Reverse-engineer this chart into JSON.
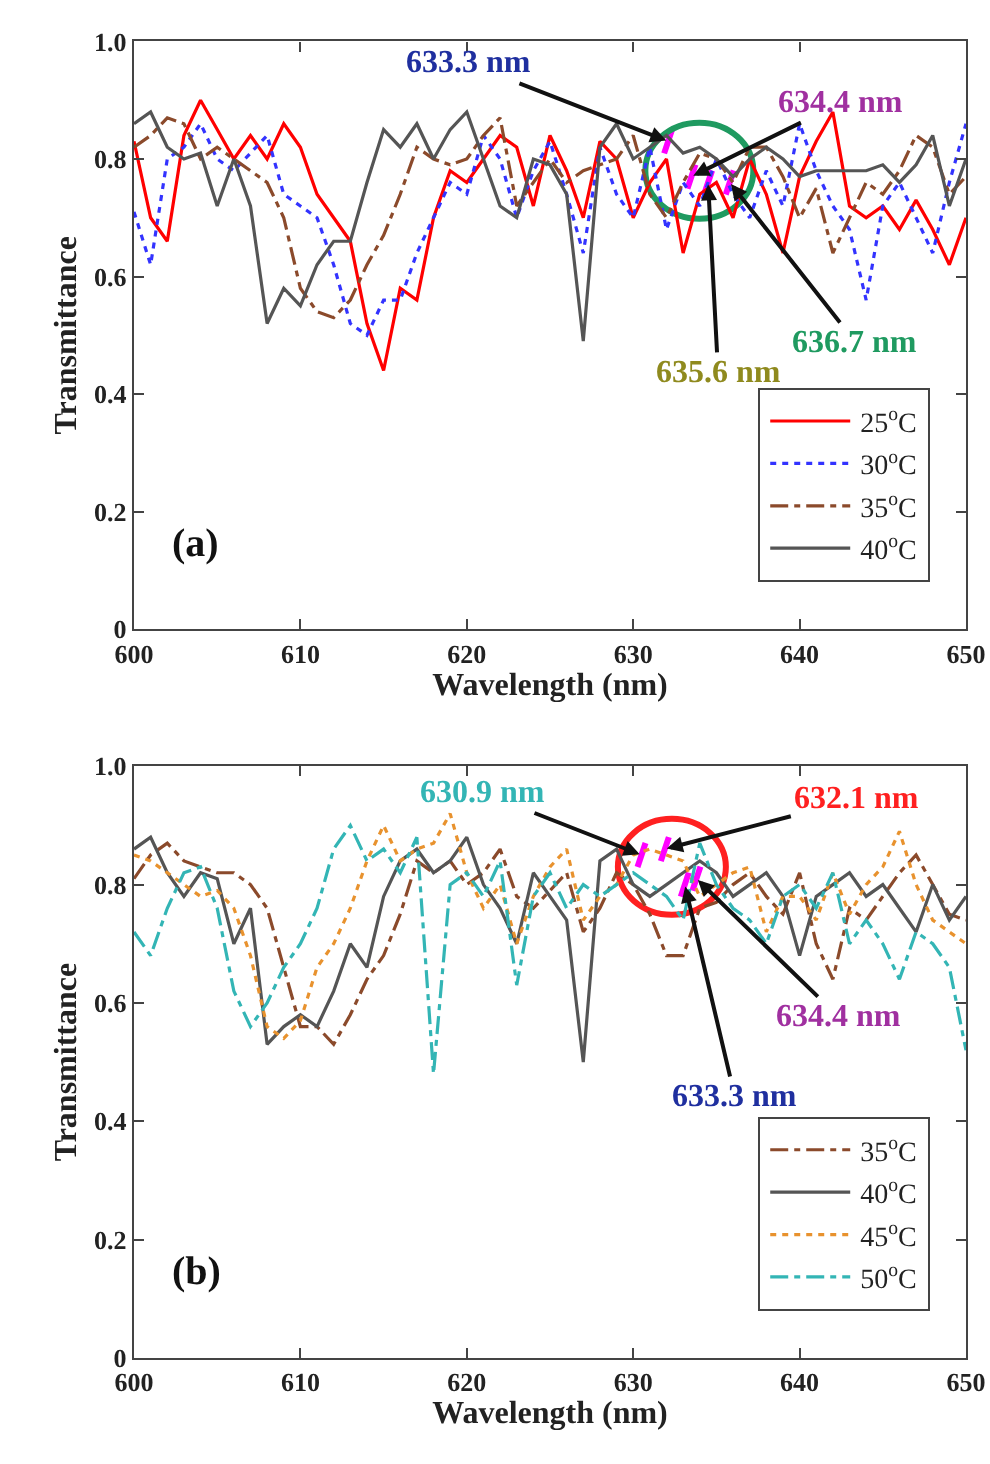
{
  "chart_data": [
    {
      "type": "line",
      "xlabel": "Wavelength (nm)",
      "ylabel": "Transmittance",
      "xlim": [
        600,
        650
      ],
      "ylim": [
        0,
        1
      ],
      "xticks": [
        600,
        610,
        620,
        630,
        640,
        650
      ],
      "yticks": [
        0,
        0.2,
        0.4,
        0.6,
        0.8,
        {
          "value": 1,
          "label": "1.0"
        }
      ],
      "legend": "bottom right",
      "x": [
        600,
        601,
        602,
        603,
        604,
        605,
        606,
        607,
        608,
        609,
        610,
        611,
        612,
        613,
        614,
        615,
        616,
        617,
        618,
        619,
        620,
        621,
        622,
        623,
        624,
        625,
        626,
        627,
        628,
        629,
        630,
        631,
        632,
        633,
        634,
        635,
        636,
        637,
        638,
        639,
        640,
        641,
        642,
        643,
        644,
        645,
        646,
        647,
        648,
        649,
        650
      ],
      "series": [
        {
          "name": "25$^{o}$C",
          "color": "#ff0000",
          "line_style": "solid",
          "values": [
            0.83,
            0.7,
            0.66,
            0.84,
            0.9,
            0.85,
            0.8,
            0.84,
            0.8,
            0.86,
            0.82,
            0.74,
            0.7,
            0.66,
            0.52,
            0.44,
            0.58,
            0.56,
            0.7,
            0.78,
            0.76,
            0.8,
            0.84,
            0.82,
            0.72,
            0.84,
            0.78,
            0.7,
            0.83,
            0.8,
            0.7,
            0.76,
            0.8,
            0.64,
            0.74,
            0.76,
            0.7,
            0.8,
            0.74,
            0.64,
            0.77,
            0.83,
            0.88,
            0.72,
            0.7,
            0.72,
            0.68,
            0.73,
            0.68,
            0.62,
            0.7
          ]
        },
        {
          "name": "30$^{o}$C",
          "color": "#3333ff",
          "line_style": "dotted",
          "values": [
            0.71,
            0.62,
            0.8,
            0.82,
            0.86,
            0.8,
            0.78,
            0.81,
            0.84,
            0.74,
            0.72,
            0.7,
            0.62,
            0.52,
            0.5,
            0.56,
            0.56,
            0.64,
            0.7,
            0.76,
            0.74,
            0.84,
            0.8,
            0.7,
            0.78,
            0.83,
            0.74,
            0.64,
            0.82,
            0.74,
            0.7,
            0.82,
            0.68,
            0.76,
            0.72,
            0.8,
            0.74,
            0.7,
            0.78,
            0.72,
            0.86,
            0.78,
            0.72,
            0.68,
            0.56,
            0.72,
            0.76,
            0.7,
            0.64,
            0.76,
            0.86
          ]
        },
        {
          "name": "35$^{o}$C",
          "color": "#8b4a2b",
          "line_style": "dashdot",
          "values": [
            0.82,
            0.84,
            0.87,
            0.86,
            0.8,
            0.82,
            0.8,
            0.78,
            0.76,
            0.7,
            0.58,
            0.54,
            0.53,
            0.56,
            0.62,
            0.67,
            0.74,
            0.82,
            0.8,
            0.79,
            0.8,
            0.84,
            0.87,
            0.72,
            0.76,
            0.8,
            0.76,
            0.78,
            0.79,
            0.8,
            0.84,
            0.74,
            0.7,
            0.76,
            0.81,
            0.8,
            0.76,
            0.82,
            0.82,
            0.77,
            0.7,
            0.75,
            0.64,
            0.7,
            0.76,
            0.74,
            0.78,
            0.84,
            0.82,
            0.74,
            0.77
          ]
        },
        {
          "name": "40$^{o}$C",
          "color": "#555555",
          "line_style": "solid",
          "values": [
            0.86,
            0.88,
            0.82,
            0.8,
            0.81,
            0.72,
            0.8,
            0.72,
            0.52,
            0.58,
            0.55,
            0.62,
            0.66,
            0.66,
            0.76,
            0.85,
            0.82,
            0.86,
            0.8,
            0.85,
            0.88,
            0.8,
            0.72,
            0.7,
            0.8,
            0.79,
            0.74,
            0.49,
            0.82,
            0.86,
            0.8,
            0.82,
            0.84,
            0.81,
            0.82,
            0.8,
            0.77,
            0.8,
            0.82,
            0.8,
            0.77,
            0.78,
            0.78,
            0.78,
            0.78,
            0.79,
            0.76,
            0.79,
            0.84,
            0.72,
            0.8
          ]
        }
      ],
      "annotations": [
        {
          "text": "633.3 nm",
          "x": 632.1,
          "y": 0.83
        },
        {
          "text": "634.4 nm",
          "x": 633.5,
          "y": 0.77
        },
        {
          "text": "635.6 nm",
          "x": 634.5,
          "y": 0.76
        },
        {
          "text": "636.7 nm",
          "x": 635.8,
          "y": 0.76
        },
        "(a)"
      ]
    },
    {
      "type": "line",
      "xlabel": "Wavelength (nm)",
      "ylabel": "Transmittance",
      "xlim": [
        600,
        650
      ],
      "ylim": [
        0,
        1
      ],
      "xticks": [
        600,
        610,
        620,
        630,
        640,
        650
      ],
      "yticks": [
        0,
        0.2,
        0.4,
        0.6,
        0.8,
        {
          "value": 1,
          "label": "1.0"
        }
      ],
      "legend": "bottom right",
      "x": [
        600,
        601,
        602,
        603,
        604,
        605,
        606,
        607,
        608,
        609,
        610,
        611,
        612,
        613,
        614,
        615,
        616,
        617,
        618,
        619,
        620,
        621,
        622,
        623,
        624,
        625,
        626,
        627,
        628,
        629,
        630,
        631,
        632,
        633,
        634,
        635,
        636,
        637,
        638,
        639,
        640,
        641,
        642,
        643,
        644,
        645,
        646,
        647,
        648,
        649,
        650
      ],
      "series": [
        {
          "name": "35$^{o}$C",
          "color": "#8b4a2b",
          "line_style": "dashdot",
          "values": [
            0.81,
            0.85,
            0.87,
            0.84,
            0.83,
            0.82,
            0.82,
            0.8,
            0.76,
            0.66,
            0.56,
            0.56,
            0.53,
            0.58,
            0.64,
            0.68,
            0.75,
            0.84,
            0.82,
            0.84,
            0.8,
            0.82,
            0.86,
            0.78,
            0.76,
            0.79,
            0.82,
            0.72,
            0.76,
            0.82,
            0.8,
            0.75,
            0.68,
            0.68,
            0.76,
            0.77,
            0.8,
            0.82,
            0.78,
            0.75,
            0.82,
            0.7,
            0.64,
            0.76,
            0.74,
            0.78,
            0.82,
            0.85,
            0.8,
            0.75,
            0.74
          ]
        },
        {
          "name": "40$^{o}$C",
          "color": "#555555",
          "line_style": "solid",
          "values": [
            0.86,
            0.88,
            0.82,
            0.78,
            0.82,
            0.81,
            0.7,
            0.76,
            0.53,
            0.56,
            0.58,
            0.56,
            0.62,
            0.7,
            0.66,
            0.78,
            0.84,
            0.86,
            0.82,
            0.84,
            0.88,
            0.8,
            0.76,
            0.7,
            0.82,
            0.78,
            0.74,
            0.5,
            0.84,
            0.86,
            0.8,
            0.78,
            0.8,
            0.82,
            0.84,
            0.82,
            0.78,
            0.8,
            0.82,
            0.78,
            0.68,
            0.78,
            0.8,
            0.82,
            0.78,
            0.8,
            0.76,
            0.72,
            0.8,
            0.74,
            0.78
          ]
        },
        {
          "name": "45$^{o}$C",
          "color": "#e8922e",
          "line_style": "dotted",
          "values": [
            0.85,
            0.84,
            0.82,
            0.8,
            0.78,
            0.79,
            0.76,
            0.68,
            0.56,
            0.54,
            0.57,
            0.66,
            0.7,
            0.76,
            0.84,
            0.9,
            0.84,
            0.86,
            0.87,
            0.92,
            0.82,
            0.76,
            0.8,
            0.7,
            0.78,
            0.83,
            0.86,
            0.74,
            0.78,
            0.8,
            0.85,
            0.86,
            0.85,
            0.84,
            0.78,
            0.8,
            0.82,
            0.83,
            0.72,
            0.78,
            0.78,
            0.74,
            0.82,
            0.75,
            0.8,
            0.83,
            0.89,
            0.8,
            0.74,
            0.72,
            0.7
          ]
        },
        {
          "name": "50$^{o}$C",
          "color": "#33b5b5",
          "line_style": "dashdot",
          "values": [
            0.72,
            0.68,
            0.76,
            0.82,
            0.83,
            0.76,
            0.62,
            0.56,
            0.6,
            0.66,
            0.7,
            0.76,
            0.86,
            0.9,
            0.84,
            0.86,
            0.82,
            0.88,
            0.48,
            0.8,
            0.82,
            0.78,
            0.84,
            0.63,
            0.78,
            0.82,
            0.76,
            0.8,
            0.78,
            0.8,
            0.82,
            0.8,
            0.78,
            0.74,
            0.87,
            0.8,
            0.76,
            0.74,
            0.7,
            0.78,
            0.8,
            0.76,
            0.82,
            0.7,
            0.74,
            0.7,
            0.64,
            0.72,
            0.7,
            0.66,
            0.52
          ]
        }
      ],
      "annotations": [
        {
          "text": "630.9 nm",
          "x": 630.5,
          "y": 0.85
        },
        {
          "text": "632.1 nm",
          "x": 631.9,
          "y": 0.86
        },
        {
          "text": "634.4 nm",
          "x": 633.8,
          "y": 0.81
        },
        {
          "text": "633.3 nm",
          "x": 633.1,
          "y": 0.8
        },
        "(b)"
      ]
    }
  ]
}
